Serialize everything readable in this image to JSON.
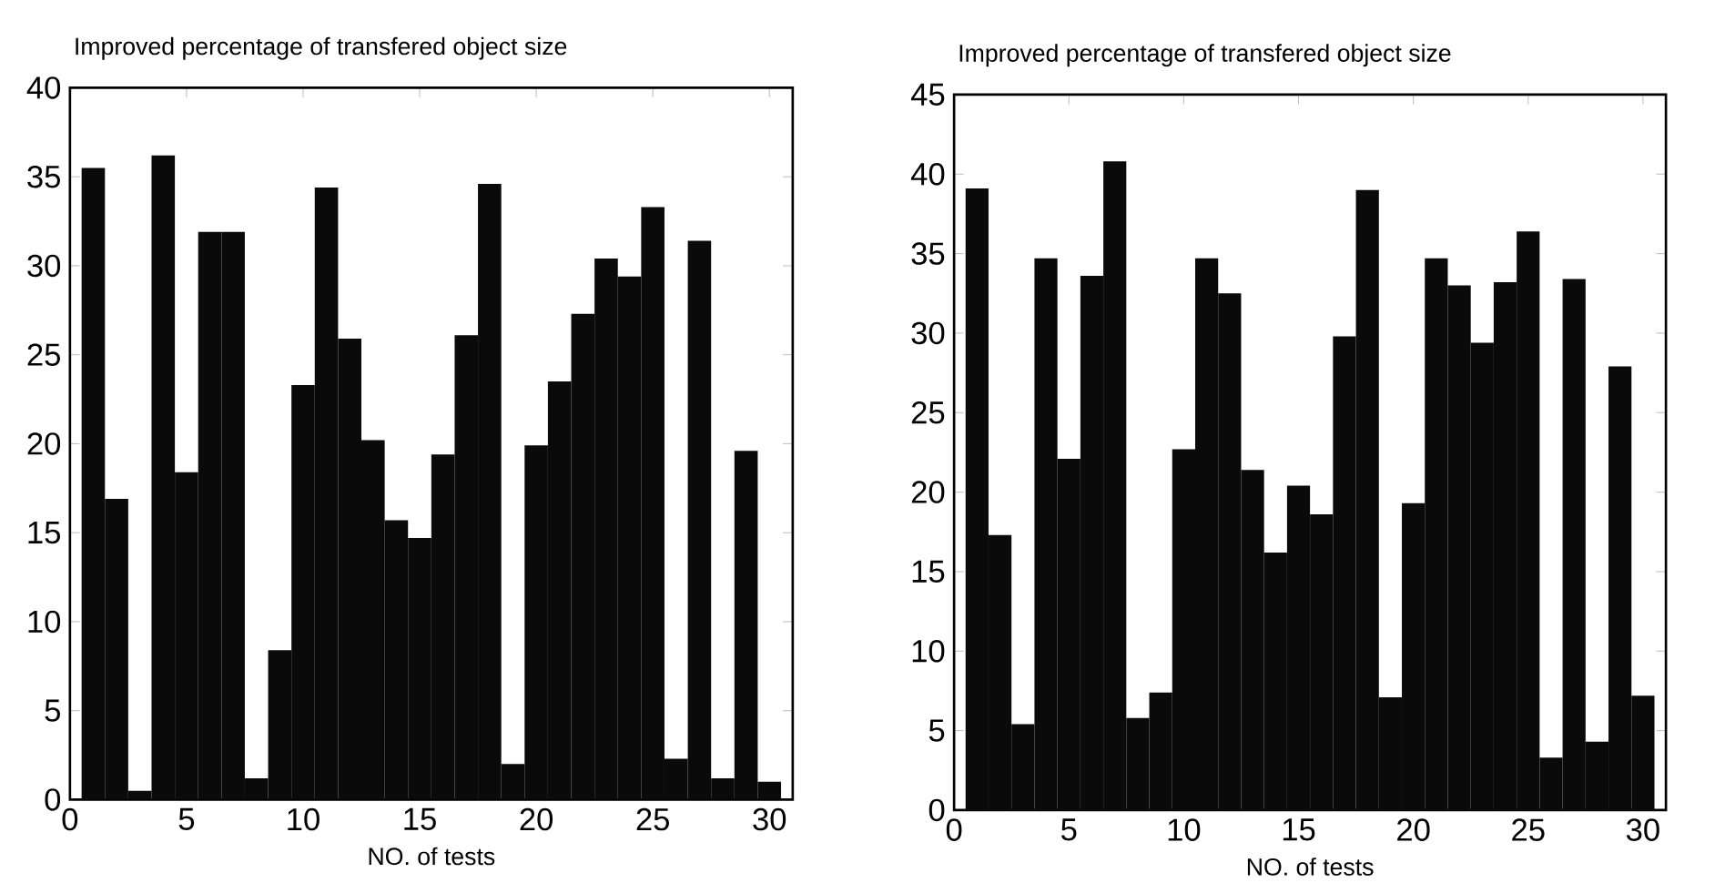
{
  "chart_data": [
    {
      "type": "bar",
      "title": "Improved percentage of transfered object size",
      "xlabel": "NO. of tests",
      "color": "#0a0a0a",
      "x": [
        1,
        2,
        3,
        4,
        5,
        6,
        7,
        8,
        9,
        10,
        11,
        12,
        13,
        14,
        15,
        16,
        17,
        18,
        19,
        20,
        21,
        22,
        23,
        24,
        25,
        26,
        27,
        28,
        29,
        30
      ],
      "values": [
        35.5,
        16.9,
        0.5,
        36.2,
        18.4,
        31.9,
        31.9,
        1.2,
        8.4,
        23.3,
        34.4,
        25.9,
        20.2,
        15.7,
        14.7,
        19.4,
        26.1,
        34.6,
        2.0,
        19.9,
        23.5,
        27.3,
        30.4,
        29.4,
        33.3,
        2.3,
        31.4,
        1.2,
        19.6,
        1.0
      ],
      "xlim": [
        0,
        31
      ],
      "ylim": [
        0,
        40
      ],
      "xticks": [
        0,
        5,
        10,
        15,
        20,
        25,
        30
      ],
      "yticks": [
        0,
        5,
        10,
        15,
        20,
        25,
        30,
        35,
        40
      ]
    },
    {
      "type": "bar",
      "title": "Improved percentage of transfered object size",
      "xlabel": "NO. of tests",
      "color": "#0a0a0a",
      "x": [
        1,
        2,
        3,
        4,
        5,
        6,
        7,
        8,
        9,
        10,
        11,
        12,
        13,
        14,
        15,
        16,
        17,
        18,
        19,
        20,
        21,
        22,
        23,
        24,
        25,
        26,
        27,
        28,
        29,
        30
      ],
      "values": [
        39.1,
        17.3,
        5.4,
        34.7,
        22.1,
        33.6,
        40.8,
        5.8,
        7.4,
        22.7,
        34.7,
        32.5,
        21.4,
        16.2,
        20.4,
        18.6,
        29.8,
        39.0,
        7.1,
        19.3,
        34.7,
        33.0,
        29.4,
        33.2,
        36.4,
        3.3,
        33.4,
        4.3,
        27.9,
        7.2
      ],
      "xlim": [
        0,
        31
      ],
      "ylim": [
        0,
        45
      ],
      "xticks": [
        0,
        5,
        10,
        15,
        20,
        25,
        30
      ],
      "yticks": [
        0,
        5,
        10,
        15,
        20,
        25,
        30,
        35,
        40,
        45
      ]
    }
  ]
}
